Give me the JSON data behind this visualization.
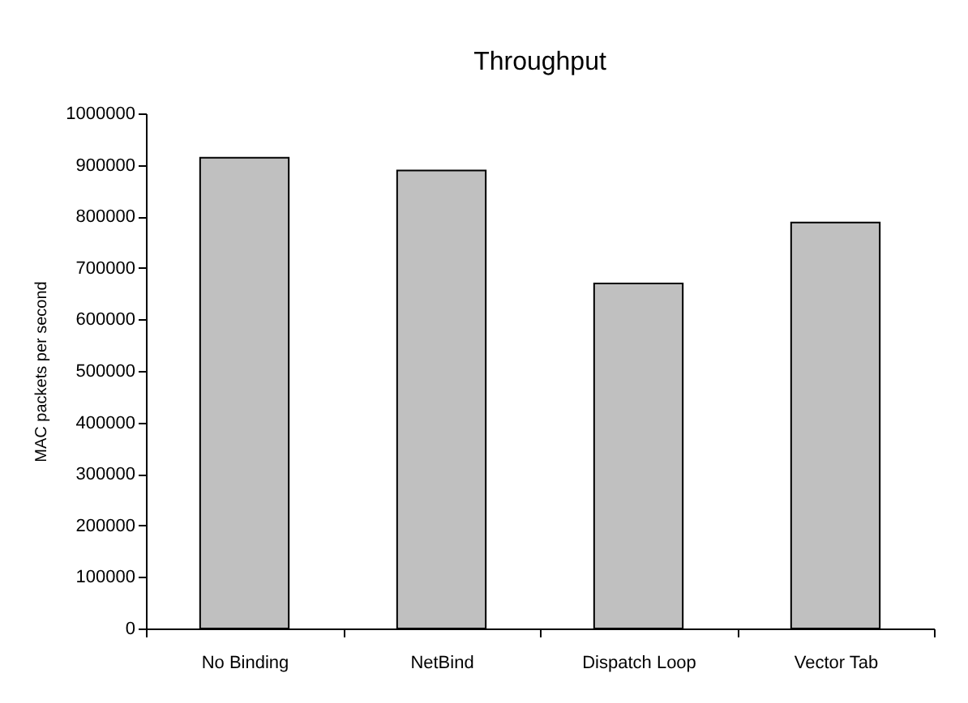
{
  "chart_data": {
    "type": "bar",
    "title": "Throughput",
    "ylabel": "MAC packets per second",
    "categories": [
      "No Binding",
      "NetBind",
      "Dispatch Loop",
      "Vector Tab"
    ],
    "values": [
      914000,
      889000,
      670000,
      788000
    ],
    "color": "#c0c0c0",
    "ylim": [
      0,
      1000000
    ],
    "yticks": [
      0,
      100000,
      200000,
      300000,
      400000,
      500000,
      600000,
      700000,
      800000,
      900000,
      1000000
    ],
    "grid": false
  }
}
